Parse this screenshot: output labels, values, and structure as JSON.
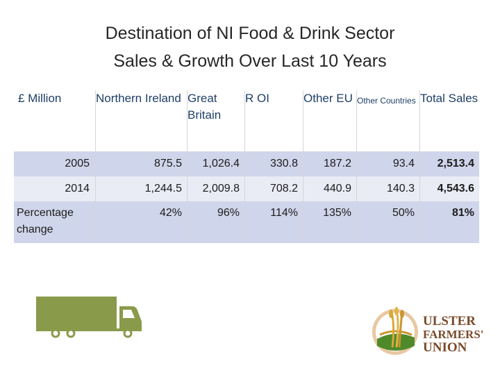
{
  "title": {
    "line1": "Destination of NI Food & Drink Sector",
    "line2": "Sales & Growth Over Last 10 Years"
  },
  "table": {
    "headers": [
      "£ Million",
      "Northern Ireland",
      "Great Britain",
      "R OI",
      "Other EU",
      "Other Countries",
      "Total Sales"
    ],
    "rows": [
      {
        "label": "2005",
        "values": [
          "875.5",
          "1,026.4",
          "330.8",
          "187.2",
          "93.4",
          "2,513.4"
        ]
      },
      {
        "label": "2014",
        "values": [
          "1,244.5",
          "2,009.8",
          "708.2",
          "440.9",
          "140.3",
          "4,543.6"
        ]
      },
      {
        "label": "Percentage change",
        "values": [
          "42%",
          "96%",
          "114%",
          "135%",
          "50%",
          "81%"
        ]
      }
    ]
  },
  "icons": {
    "truck": "truck-icon",
    "logo": "ulster-farmers-union-logo"
  },
  "logo": {
    "line1": "ULSTER",
    "line2": "FARMERS'",
    "line3": "UNION"
  },
  "colors": {
    "header_text": "#1f3f66",
    "row_dark": "#cfd5ea",
    "row_light": "#e9ebf5",
    "truck": "#8a9a4b",
    "logo_text": "#7a4a2a"
  }
}
